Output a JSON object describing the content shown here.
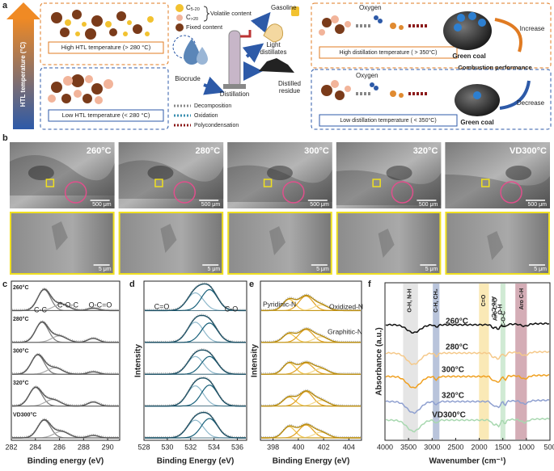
{
  "samples": [
    "260°C",
    "280°C",
    "300°C",
    "320°C",
    "VD300°C"
  ],
  "panel_a": {
    "label": "a",
    "axis_label": "HTL temperature (°C)",
    "high_htl": "High HTL temperature (> 280 °C)",
    "low_htl": "Low HTL temperature (< 280 °C)",
    "species": [
      {
        "base": "C",
        "sub": "5-20"
      },
      {
        "base": "C",
        "sub": ">20"
      }
    ],
    "volatile_content": "Volatile content",
    "fixed_content": "Fixed content",
    "gasoline": "Gasoline",
    "light_distillates": [
      "Light",
      "distillates"
    ],
    "biocrude": "Biocrude",
    "distillation": "Distillation",
    "distilled_residue": [
      "Distilled",
      "residue"
    ],
    "legend": [
      "Decomposition",
      "Oxidation",
      "Polycondensation"
    ],
    "oxygen": [
      "Oxygen",
      "Oxygen"
    ],
    "high_dist": "High distillation temperature ( > 350°C)",
    "low_dist": "Low distillation temperature ( < 350°C)",
    "green_coal": [
      "Green coal",
      "Green coal"
    ],
    "increase": "Increase",
    "decrease": "Decrease",
    "combustion": "Combustion performance"
  },
  "panel_b": {
    "label": "b",
    "scale_top": [
      "500 μm",
      "500 μm",
      "500 μm",
      "500 μm",
      "500 μm"
    ],
    "scale_bottom": [
      "5 μm",
      "5 μm",
      "5 μm",
      "5 μm",
      "5 μm"
    ]
  },
  "panel_c": {
    "label": "c",
    "x_label": "Binding energy (eV)",
    "xlim": [
      282,
      291
    ],
    "xticks": [
      282,
      284,
      286,
      288,
      290
    ],
    "peaks": [
      "C-C",
      "C-O-C",
      "O-C=O"
    ]
  },
  "panel_d": {
    "label": "d",
    "x_label": "Binding Energy (eV)",
    "y_label": "Intensity",
    "xlim": [
      528,
      536.8
    ],
    "xticks": [
      528,
      530,
      532,
      534,
      536
    ],
    "peaks": [
      "C=O",
      "C-O"
    ]
  },
  "panel_e": {
    "label": "e",
    "x_label": "Binding Energy (eV)",
    "y_label": "Intensity",
    "xlim": [
      397,
      405
    ],
    "xticks": [
      398,
      400,
      402,
      404
    ],
    "peaks": [
      "Pyridinic-N",
      "Oxidized-N",
      "Graphitic-N"
    ]
  },
  "panel_f": {
    "label": "f",
    "x_label": "Wavenumber (cm⁻¹)",
    "y_label": "Absorbance (a.u.)",
    "xlim": [
      4000,
      500
    ],
    "xticks": [
      4000,
      3500,
      3000,
      2500,
      2000,
      1500,
      1000,
      500
    ],
    "bands": [
      "O-H, N-H",
      "C-H, CH₂",
      "C=O",
      "Aro C-C",
      "Aro C=C",
      "O-H",
      "C-O-C",
      "Aro C-H"
    ]
  }
}
